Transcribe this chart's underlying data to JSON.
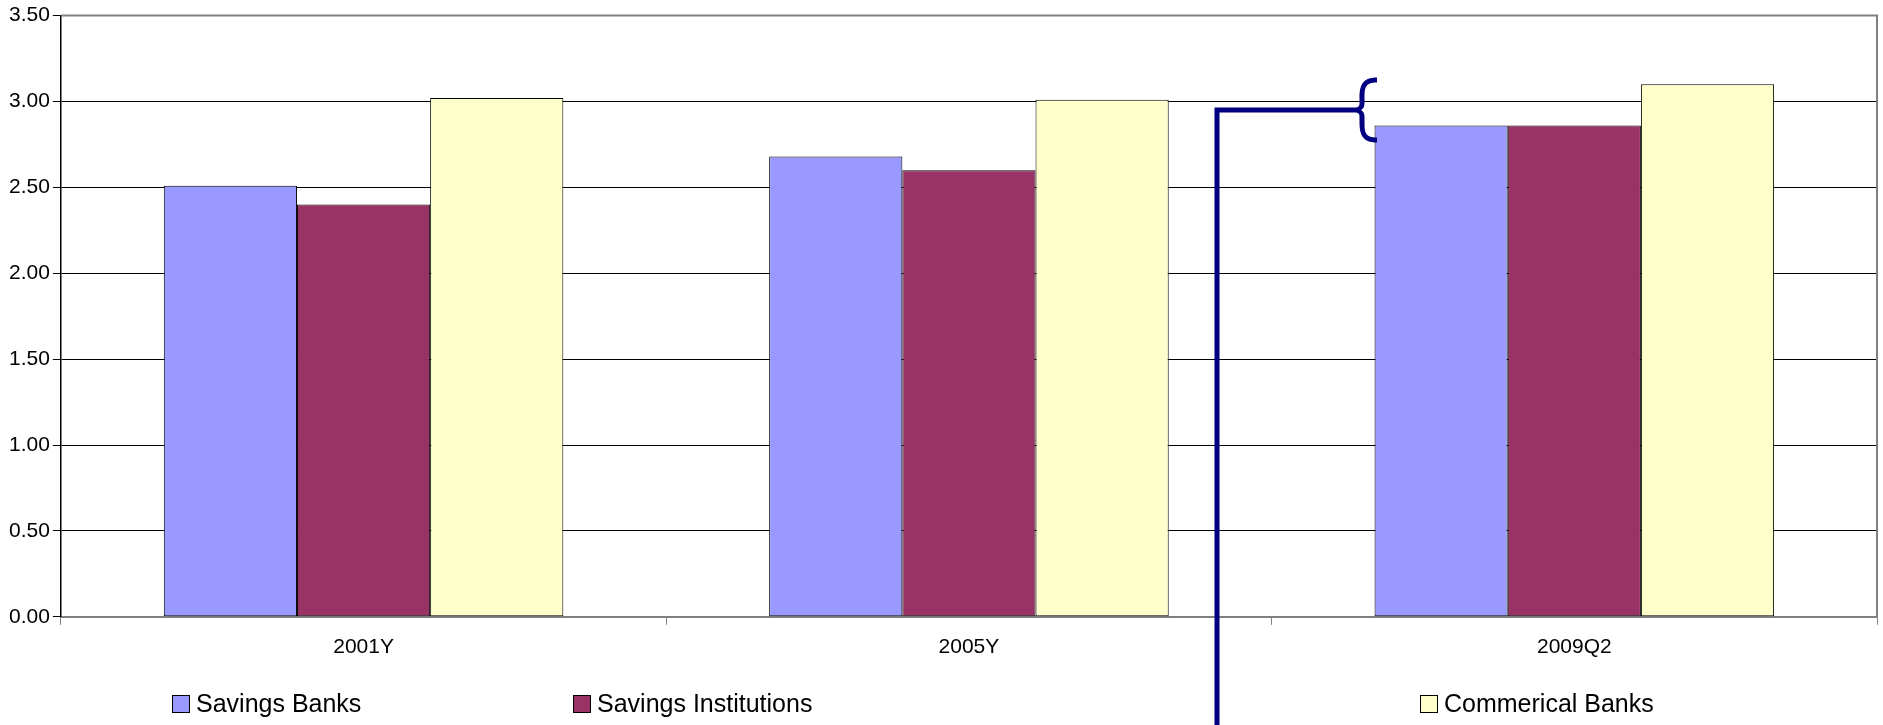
{
  "chart_data": {
    "type": "bar",
    "categories": [
      "2001Y",
      "2005Y",
      "2009Q2"
    ],
    "series": [
      {
        "name": "Savings Banks",
        "color": "#9999ff",
        "values": [
          2.51,
          2.68,
          2.86
        ]
      },
      {
        "name": "Savings Institutions",
        "color": "#993366",
        "values": [
          2.4,
          2.6,
          2.86
        ]
      },
      {
        "name": "Commerical Banks",
        "color": "#ffffcc",
        "values": [
          3.02,
          3.01,
          3.1
        ]
      }
    ],
    "ylim": [
      0,
      3.5
    ],
    "yticks": [
      {
        "value": 0,
        "label": "0.00"
      },
      {
        "value": 0.5,
        "label": "0.50"
      },
      {
        "value": 1,
        "label": "1.00"
      },
      {
        "value": 1.5,
        "label": "1.50"
      },
      {
        "value": 2,
        "label": "2.00"
      },
      {
        "value": 2.5,
        "label": "2.50"
      },
      {
        "value": 3,
        "label": "3.00"
      },
      {
        "value": 3.5,
        "label": "3.50"
      }
    ],
    "grid": "y",
    "legend": "bottom"
  }
}
